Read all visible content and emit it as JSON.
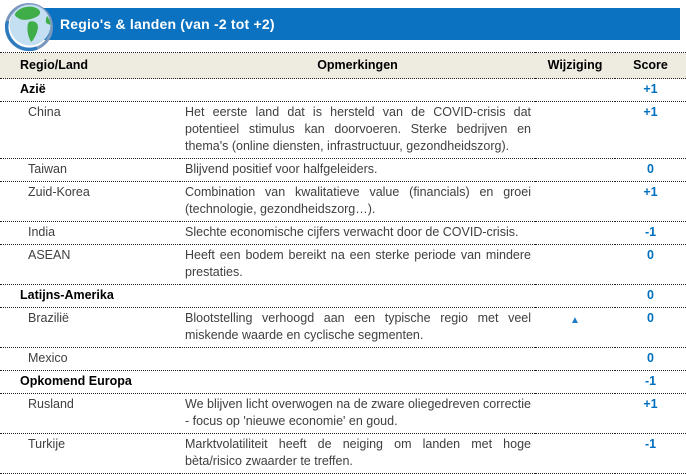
{
  "header": {
    "title": "Regio's & landen (van -2 tot +2)",
    "icon": "globe-icon"
  },
  "columns": {
    "region": "Regio/Land",
    "remarks": "Opmerkingen",
    "change": "Wijziging",
    "score": "Score"
  },
  "rows": [
    {
      "type": "category",
      "name": "Azië",
      "remarks": "",
      "change": "",
      "score": "+1"
    },
    {
      "type": "country",
      "name": "China",
      "remarks": "Het eerste land dat is hersteld van de COVID-crisis dat potentieel stimulus kan doorvoeren. Sterke bedrijven en thema's (online diensten, infrastructuur, gezondheidszorg).",
      "change": "",
      "score": "+1"
    },
    {
      "type": "country",
      "name": "Taiwan",
      "remarks": "Blijvend positief voor halfgeleiders.",
      "change": "",
      "score": "0"
    },
    {
      "type": "country",
      "name": "Zuid-Korea",
      "remarks": "Combination van kwalitatieve value (financials) en groei (technologie, gezondheidszorg…).",
      "change": "",
      "score": "+1"
    },
    {
      "type": "country",
      "name": "India",
      "remarks": "Slechte economische cijfers verwacht door de COVID-crisis.",
      "change": "",
      "score": "-1"
    },
    {
      "type": "country",
      "name": "ASEAN",
      "remarks": "Heeft een bodem bereikt na een sterke periode van mindere prestaties.",
      "change": "",
      "score": "0"
    },
    {
      "type": "category",
      "name": "Latijns-Amerika",
      "remarks": "",
      "change": "",
      "score": "0"
    },
    {
      "type": "country",
      "name": "Brazilië",
      "remarks": "Blootstelling verhoogd aan een typische regio met veel miskende waarde en cyclische segmenten.",
      "change": "▲",
      "score": "0"
    },
    {
      "type": "country",
      "name": "Mexico",
      "remarks": "",
      "change": "",
      "score": "0"
    },
    {
      "type": "category",
      "name": "Opkomend Europa",
      "remarks": "",
      "change": "",
      "score": "-1"
    },
    {
      "type": "country",
      "name": "Rusland",
      "remarks": "We blijven licht overwogen na de zware oliegedreven correctie - focus op 'nieuwe economie' en goud.",
      "change": "",
      "score": "+1"
    },
    {
      "type": "country",
      "name": "Turkije",
      "remarks": "Marktvolatiliteit heeft de neiging om landen met hoge bèta/risico zwaarder te treffen.",
      "change": "",
      "score": "-1"
    }
  ],
  "colors": {
    "title_bar_blue": "#0B72C2",
    "header_row_bg": "#EEECE1",
    "score_blue": "#0070C0",
    "change_triangle_blue": "#1F7AC4",
    "body_text": "#3F3F3F",
    "globe_ocean_blue": "#C5DFF2",
    "globe_land_green": "#3FAE49"
  }
}
